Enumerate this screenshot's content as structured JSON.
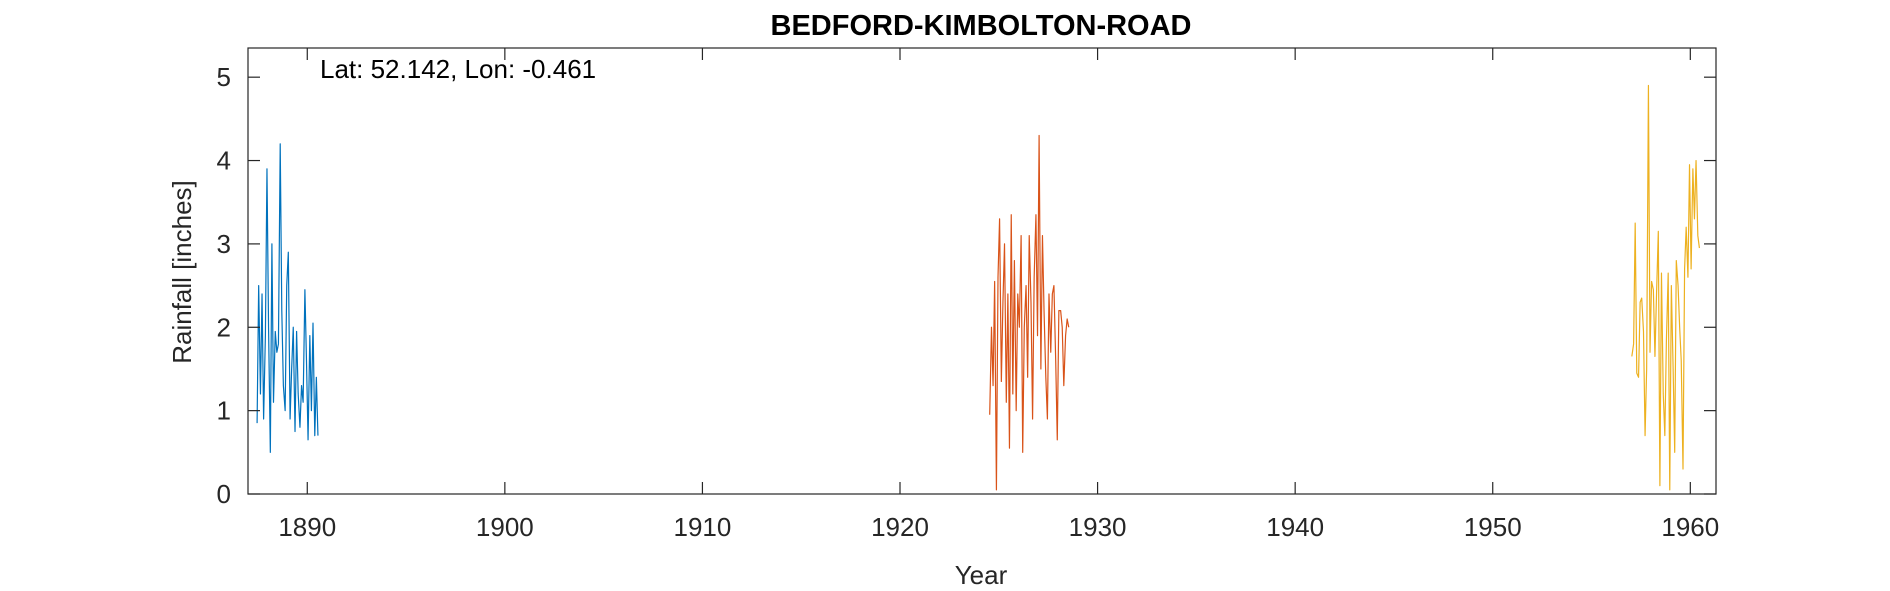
{
  "chart_data": {
    "type": "line",
    "title": "BEDFORD-KIMBOLTON-ROAD",
    "xlabel": "Year",
    "ylabel": "Rainfall [inches]",
    "annotation": "Lat: 52.142, Lon: -0.461",
    "xlim": [
      1887,
      1961.3
    ],
    "ylim": [
      0,
      5.35
    ],
    "xticks": [
      1890,
      1900,
      1910,
      1920,
      1930,
      1940,
      1950,
      1960
    ],
    "yticks": [
      0,
      1,
      2,
      3,
      4,
      5
    ],
    "grid": false,
    "legend": "none",
    "series": [
      {
        "color": "#0072BD",
        "x": [
          1887.46,
          1887.54,
          1887.63,
          1887.71,
          1887.79,
          1887.88,
          1887.96,
          1888.04,
          1888.13,
          1888.21,
          1888.29,
          1888.38,
          1888.46,
          1888.54,
          1888.63,
          1888.71,
          1888.79,
          1888.88,
          1888.96,
          1889.04,
          1889.13,
          1889.21,
          1889.29,
          1889.38,
          1889.46,
          1889.54,
          1889.63,
          1889.71,
          1889.79,
          1889.88,
          1889.96,
          1890.04,
          1890.13,
          1890.21,
          1890.29,
          1890.38,
          1890.46,
          1890.54
        ],
        "y": [
          0.85,
          2.5,
          1.2,
          2.4,
          0.9,
          1.9,
          3.9,
          2.0,
          0.5,
          3.0,
          1.1,
          1.95,
          1.7,
          1.8,
          4.2,
          2.2,
          1.3,
          1.0,
          2.5,
          2.9,
          0.9,
          1.5,
          2.0,
          0.75,
          1.95,
          1.2,
          0.8,
          1.3,
          1.1,
          2.45,
          1.6,
          0.65,
          1.9,
          1.0,
          2.05,
          0.7,
          1.4,
          0.7
        ]
      },
      {
        "color": "#D95319",
        "x": [
          1924.54,
          1924.63,
          1924.71,
          1924.79,
          1924.88,
          1924.96,
          1925.04,
          1925.13,
          1925.21,
          1925.29,
          1925.38,
          1925.46,
          1925.54,
          1925.63,
          1925.71,
          1925.79,
          1925.88,
          1925.96,
          1926.04,
          1926.13,
          1926.21,
          1926.29,
          1926.38,
          1926.46,
          1926.54,
          1926.63,
          1926.71,
          1926.79,
          1926.88,
          1926.96,
          1927.04,
          1927.13,
          1927.21,
          1927.29,
          1927.38,
          1927.46,
          1927.54,
          1927.63,
          1927.71,
          1927.79,
          1927.88,
          1927.96,
          1928.04,
          1928.13,
          1928.21,
          1928.29,
          1928.38,
          1928.46,
          1928.54
        ],
        "y": [
          0.95,
          2.0,
          1.3,
          2.55,
          0.05,
          2.6,
          3.3,
          1.35,
          2.3,
          3.0,
          1.1,
          2.4,
          0.55,
          3.35,
          1.2,
          2.8,
          1.0,
          2.4,
          2.0,
          3.1,
          0.5,
          2.0,
          2.5,
          1.4,
          3.1,
          2.3,
          0.9,
          2.6,
          3.35,
          1.9,
          4.3,
          1.5,
          3.1,
          2.2,
          1.4,
          0.9,
          2.4,
          1.7,
          2.4,
          2.5,
          1.6,
          0.65,
          2.2,
          2.2,
          2.0,
          1.3,
          1.9,
          2.1,
          2.0
        ]
      },
      {
        "color": "#EDB120",
        "x": [
          1957.04,
          1957.13,
          1957.21,
          1957.29,
          1957.38,
          1957.46,
          1957.54,
          1957.63,
          1957.71,
          1957.79,
          1957.88,
          1957.96,
          1958.04,
          1958.13,
          1958.21,
          1958.29,
          1958.38,
          1958.46,
          1958.54,
          1958.63,
          1958.71,
          1958.79,
          1958.88,
          1958.96,
          1959.04,
          1959.13,
          1959.21,
          1959.29,
          1959.38,
          1959.46,
          1959.54,
          1959.63,
          1959.71,
          1959.79,
          1959.88,
          1959.96,
          1960.04,
          1960.13,
          1960.21,
          1960.29,
          1960.38,
          1960.46
        ],
        "y": [
          1.65,
          1.8,
          3.25,
          1.45,
          1.4,
          2.3,
          2.35,
          1.95,
          0.7,
          1.5,
          4.9,
          1.7,
          2.55,
          2.45,
          1.65,
          2.4,
          3.15,
          0.1,
          2.65,
          1.2,
          0.7,
          1.85,
          2.65,
          0.05,
          2.5,
          1.5,
          0.5,
          2.8,
          2.5,
          2.0,
          1.6,
          0.3,
          2.7,
          3.2,
          2.6,
          3.95,
          2.7,
          3.9,
          3.3,
          4.0,
          3.1,
          2.95
        ]
      }
    ]
  }
}
